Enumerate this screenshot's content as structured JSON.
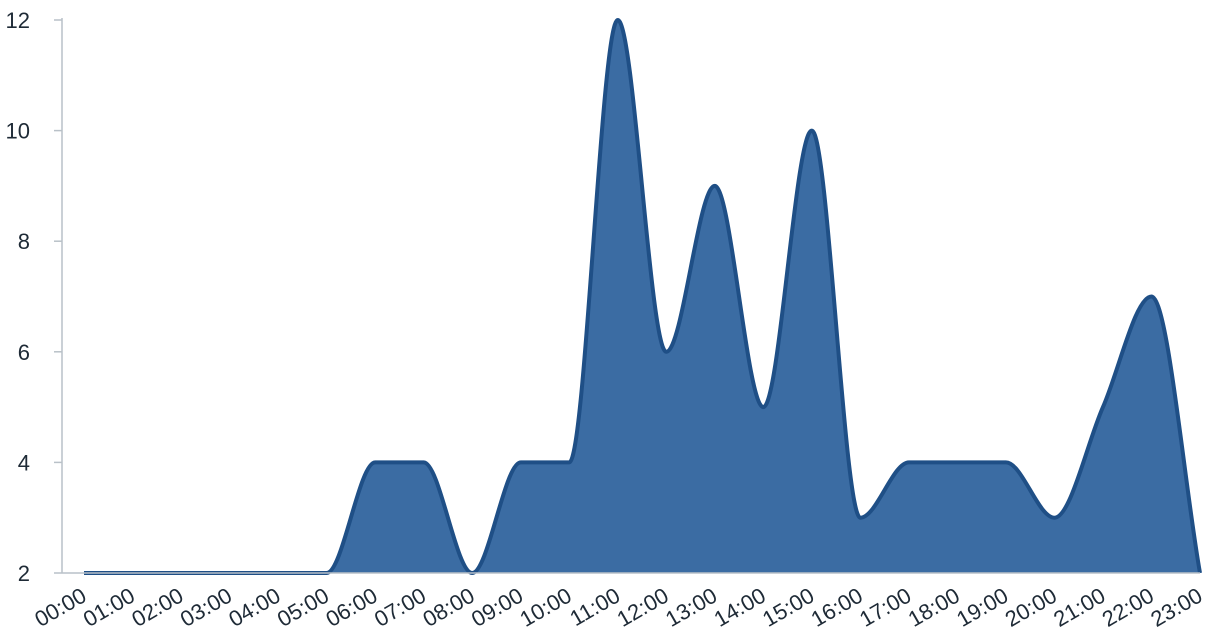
{
  "chart_data": {
    "type": "area",
    "title": "",
    "xlabel": "",
    "ylabel": "",
    "x": [
      "00:00",
      "01:00",
      "02:00",
      "03:00",
      "04:00",
      "05:00",
      "06:00",
      "07:00",
      "08:00",
      "09:00",
      "10:00",
      "11:00",
      "12:00",
      "13:00",
      "14:00",
      "15:00",
      "16:00",
      "17:00",
      "18:00",
      "19:00",
      "20:00",
      "21:00",
      "22:00",
      "23:00"
    ],
    "series": [
      {
        "values": [
          2,
          2,
          2,
          2,
          2,
          2,
          4,
          4,
          2,
          4,
          4,
          12,
          6,
          9,
          5,
          10,
          3,
          4,
          4,
          4,
          3,
          5,
          7,
          2
        ]
      }
    ],
    "ylim": [
      2,
      12
    ],
    "yticks": [
      2,
      4,
      6,
      8,
      10,
      12
    ],
    "grid": false,
    "legend": "none",
    "colors": {
      "fill": "#3b6ca3",
      "stroke": "#1f4f86",
      "axis": "#b9c1c8",
      "text": "#1e2a36"
    }
  }
}
